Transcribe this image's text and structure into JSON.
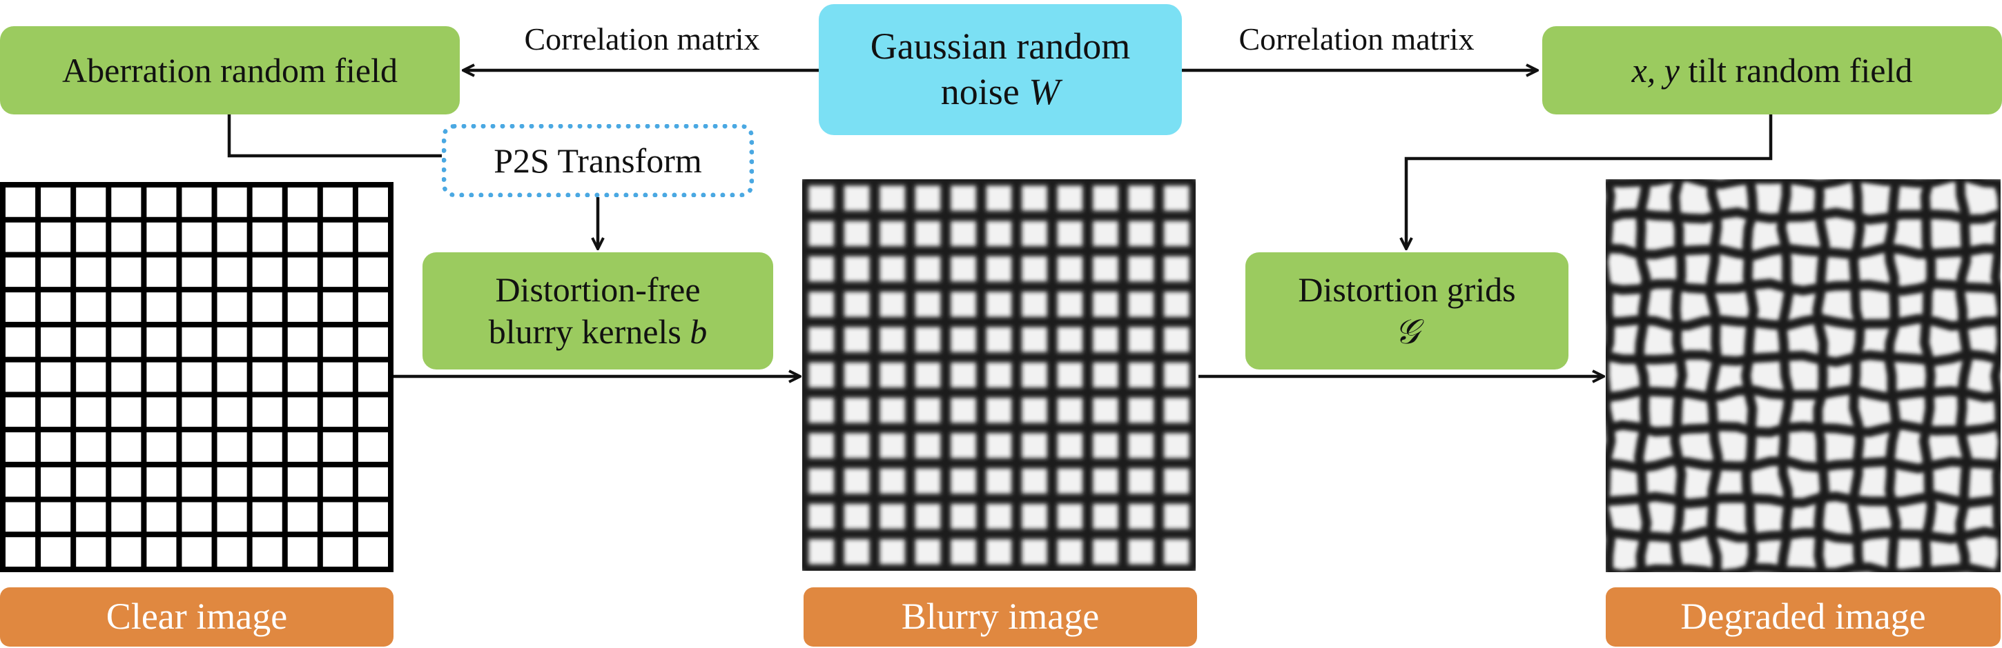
{
  "nodes": {
    "noise": {
      "line1": "Gaussian random",
      "line2_text": "noise ",
      "line2_math": "W"
    },
    "aberration": {
      "label": "Aberration random field"
    },
    "tilt": {
      "math": "x, y",
      "text": " tilt random field"
    },
    "p2s": {
      "label": "P2S Transform"
    },
    "kernels": {
      "line1": "Distortion-free",
      "line2_text": "blurry kernels ",
      "line2_math": "b"
    },
    "grids": {
      "line1": "Distortion grids",
      "line2_math": "𝒢"
    }
  },
  "edges": {
    "left_label": "Correlation matrix",
    "right_label": "Correlation matrix"
  },
  "images": {
    "clear": "Clear image",
    "blurry": "Blurry image",
    "degraded": "Degraded image"
  },
  "colors": {
    "green": "#9bcb5f",
    "cyan": "#7be0f4",
    "orange": "#e08840",
    "dotted_border": "#4aa8e2",
    "arrow": "#111111"
  }
}
